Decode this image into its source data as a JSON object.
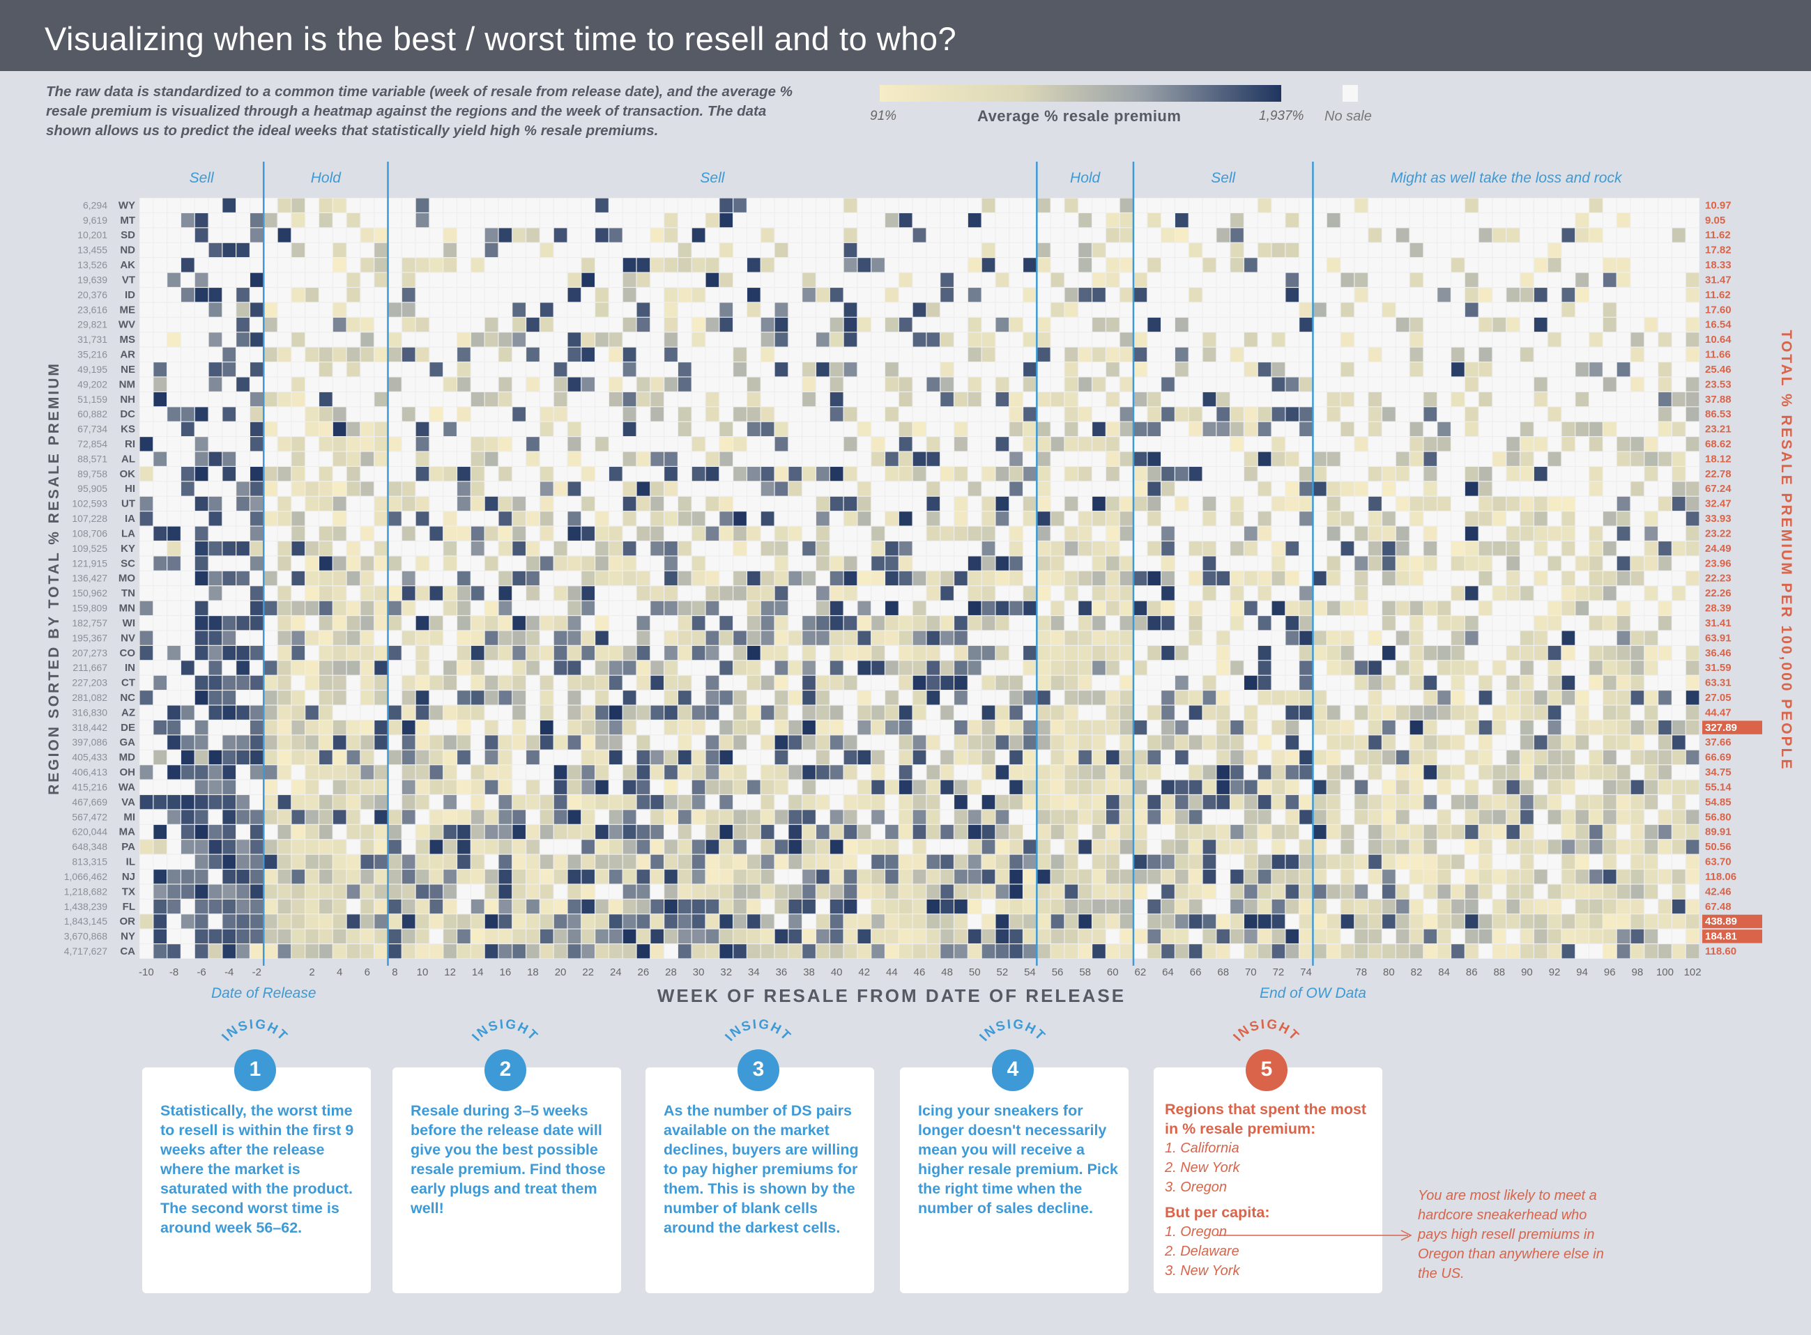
{
  "header": {
    "title": "Visualizing when is the best / worst time to resell and to who?"
  },
  "description": "The raw data is standardized to a common time variable (week of resale from release date), and the average % resale premium is visualized through a heatmap against the regions and the week of transaction. The data shown allows us to predict the ideal weeks that statistically yield high % resale premiums.",
  "legend": {
    "min_label": "91%",
    "title": "Average % resale premium",
    "max_label": "1,937%",
    "nosale_label": "No sale",
    "colors": [
      "#f6ecc6",
      "#dcd8b8",
      "#9aa1a8",
      "#1f3560"
    ],
    "nosale_color": "#f7f7f7"
  },
  "chart_data": {
    "type": "heatmap",
    "xlabel": "WEEK OF RESALE FROM DATE OF RELEASE",
    "ylabel_left": "REGION SORTED BY TOTAL % RESALE PREMIUM",
    "ylabel_right": "TOTAL % RESALE PREMIUM PER 100,000 PEOPLE",
    "x_range": [
      -10,
      103
    ],
    "x_ticks": [
      -10,
      -8,
      -6,
      -4,
      -2,
      2,
      4,
      6,
      8,
      10,
      12,
      14,
      16,
      18,
      20,
      22,
      24,
      26,
      28,
      30,
      32,
      34,
      36,
      38,
      40,
      42,
      44,
      46,
      48,
      50,
      52,
      54,
      56,
      58,
      60,
      62,
      64,
      66,
      68,
      70,
      72,
      74,
      78,
      80,
      82,
      84,
      86,
      88,
      90,
      92,
      94,
      96,
      98,
      100,
      102
    ],
    "phases": [
      {
        "label": "Sell",
        "from": -10,
        "to": -1
      },
      {
        "label": "Hold",
        "from": -1,
        "to": 8
      },
      {
        "label": "Sell",
        "from": 8,
        "to": 55
      },
      {
        "label": "Hold",
        "from": 55,
        "to": 62
      },
      {
        "label": "Sell",
        "from": 62,
        "to": 75
      },
      {
        "label": "Might as well take the loss and rock",
        "from": 75,
        "to": 103
      }
    ],
    "markers": [
      {
        "label": "Date of Release",
        "week": -1
      },
      {
        "label": "End of OW Data",
        "week": 75
      }
    ],
    "regions": [
      {
        "code": "WY",
        "total": "6,294",
        "per_capita": "10.97"
      },
      {
        "code": "MT",
        "total": "9,619",
        "per_capita": "9.05"
      },
      {
        "code": "SD",
        "total": "10,201",
        "per_capita": "11.62"
      },
      {
        "code": "ND",
        "total": "13,455",
        "per_capita": "17.82"
      },
      {
        "code": "AK",
        "total": "13,526",
        "per_capita": "18.33"
      },
      {
        "code": "VT",
        "total": "19,639",
        "per_capita": "31.47"
      },
      {
        "code": "ID",
        "total": "20,376",
        "per_capita": "11.62"
      },
      {
        "code": "ME",
        "total": "23,616",
        "per_capita": "17.60"
      },
      {
        "code": "WV",
        "total": "29,821",
        "per_capita": "16.54"
      },
      {
        "code": "MS",
        "total": "31,731",
        "per_capita": "10.64"
      },
      {
        "code": "AR",
        "total": "35,216",
        "per_capita": "11.66"
      },
      {
        "code": "NE",
        "total": "49,195",
        "per_capita": "25.46"
      },
      {
        "code": "NM",
        "total": "49,202",
        "per_capita": "23.53"
      },
      {
        "code": "NH",
        "total": "51,159",
        "per_capita": "37.88"
      },
      {
        "code": "DC",
        "total": "60,882",
        "per_capita": "86.53"
      },
      {
        "code": "KS",
        "total": "67,734",
        "per_capita": "23.21"
      },
      {
        "code": "RI",
        "total": "72,854",
        "per_capita": "68.62"
      },
      {
        "code": "AL",
        "total": "88,571",
        "per_capita": "18.12"
      },
      {
        "code": "OK",
        "total": "89,758",
        "per_capita": "22.78"
      },
      {
        "code": "HI",
        "total": "95,905",
        "per_capita": "67.24"
      },
      {
        "code": "UT",
        "total": "102,593",
        "per_capita": "32.47"
      },
      {
        "code": "IA",
        "total": "107,228",
        "per_capita": "33.93"
      },
      {
        "code": "LA",
        "total": "108,706",
        "per_capita": "23.22"
      },
      {
        "code": "KY",
        "total": "109,525",
        "per_capita": "24.49"
      },
      {
        "code": "SC",
        "total": "121,915",
        "per_capita": "23.96"
      },
      {
        "code": "MO",
        "total": "136,427",
        "per_capita": "22.23"
      },
      {
        "code": "TN",
        "total": "150,962",
        "per_capita": "22.26"
      },
      {
        "code": "MN",
        "total": "159,809",
        "per_capita": "28.39"
      },
      {
        "code": "WI",
        "total": "182,757",
        "per_capita": "31.41"
      },
      {
        "code": "NV",
        "total": "195,367",
        "per_capita": "63.91"
      },
      {
        "code": "CO",
        "total": "207,273",
        "per_capita": "36.46"
      },
      {
        "code": "IN",
        "total": "211,667",
        "per_capita": "31.59"
      },
      {
        "code": "CT",
        "total": "227,203",
        "per_capita": "63.31"
      },
      {
        "code": "NC",
        "total": "281,082",
        "per_capita": "27.05"
      },
      {
        "code": "AZ",
        "total": "316,830",
        "per_capita": "44.47"
      },
      {
        "code": "DE",
        "total": "318,442",
        "per_capita": "327.89",
        "highlight": true
      },
      {
        "code": "GA",
        "total": "397,086",
        "per_capita": "37.66"
      },
      {
        "code": "MD",
        "total": "405,433",
        "per_capita": "66.69"
      },
      {
        "code": "OH",
        "total": "406,413",
        "per_capita": "34.75"
      },
      {
        "code": "WA",
        "total": "415,216",
        "per_capita": "55.14"
      },
      {
        "code": "VA",
        "total": "467,669",
        "per_capita": "54.85"
      },
      {
        "code": "MI",
        "total": "567,472",
        "per_capita": "56.80"
      },
      {
        "code": "MA",
        "total": "620,044",
        "per_capita": "89.91"
      },
      {
        "code": "PA",
        "total": "648,348",
        "per_capita": "50.56"
      },
      {
        "code": "IL",
        "total": "813,315",
        "per_capita": "63.70"
      },
      {
        "code": "NJ",
        "total": "1,066,462",
        "per_capita": "118.06"
      },
      {
        "code": "TX",
        "total": "1,218,682",
        "per_capita": "42.46"
      },
      {
        "code": "FL",
        "total": "1,438,239",
        "per_capita": "67.48"
      },
      {
        "code": "OR",
        "total": "1,843,145",
        "per_capita": "438.89",
        "highlight": true
      },
      {
        "code": "NY",
        "total": "3,670,868",
        "per_capita": "184.81",
        "highlight": true
      },
      {
        "code": "CA",
        "total": "4,717,627",
        "per_capita": "118.60"
      }
    ]
  },
  "insights": [
    {
      "badge": "1",
      "arc": "INSIGHT",
      "text": "Statistically, the worst time to resell is within the first 9 weeks after the release where the market is saturated with the product. The second worst time is around week 56–62."
    },
    {
      "badge": "2",
      "arc": "INSIGHT",
      "text": "Resale during 3–5 weeks before the release date will give you the best possible resale premium. Find those early plugs and treat them well!"
    },
    {
      "badge": "3",
      "arc": "INSIGHT",
      "text": "As the number of DS pairs available on the market declines, buyers are willing to pay higher premiums for them. This is shown by the number of blank cells around the darkest cells."
    },
    {
      "badge": "4",
      "arc": "INSIGHT",
      "text": "Icing your sneakers for longer doesn't necessarily mean you will receive a higher resale premium. Pick the right time when the number of sales decline."
    }
  ],
  "insight5": {
    "badge": "5",
    "arc": "INSIGHT",
    "title": "Regions that spent the most in % resale premium:",
    "list1": [
      "1. California",
      "2. New York",
      "3. Oregon"
    ],
    "subtitle": "But per capita:",
    "list2": [
      "1. Oregon",
      "2. Delaware",
      "3. New York"
    ]
  },
  "side_note": "You are most likely to meet a hardcore sneakerhead who pays high resell premiums in Oregon than anywhere else in the US.",
  "colors": {
    "accent_blue": "#3d9ad6",
    "accent_red": "#d9644a",
    "header_bg": "#555a64"
  }
}
